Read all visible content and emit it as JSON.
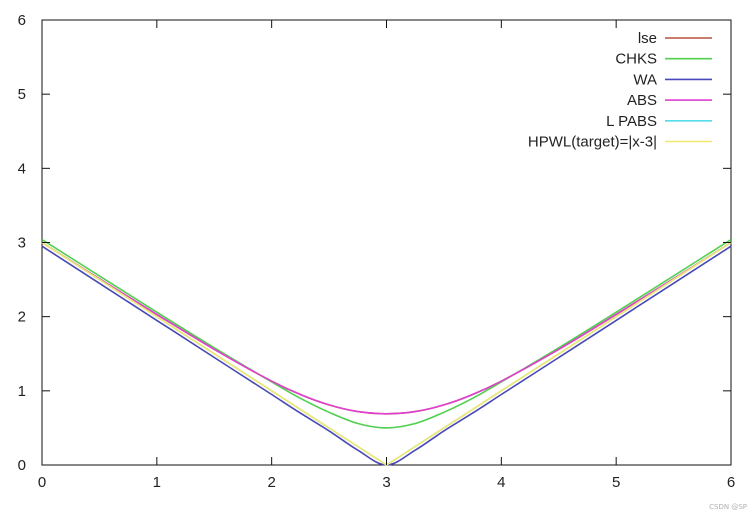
{
  "chart_data": {
    "type": "line",
    "title": "",
    "xlabel": "",
    "ylabel": "",
    "xlim": [
      0,
      6
    ],
    "ylim": [
      0,
      6
    ],
    "x_ticks": [
      "0",
      "1",
      "2",
      "3",
      "4",
      "5",
      "6"
    ],
    "y_ticks": [
      "0",
      "1",
      "2",
      "3",
      "4",
      "5",
      "6"
    ],
    "grid": false,
    "legend_position": "top-right",
    "x": [
      0,
      0.5,
      1,
      1.5,
      2,
      2.25,
      2.5,
      2.75,
      3,
      3.25,
      3.5,
      3.75,
      4,
      4.5,
      5,
      5.5,
      6
    ],
    "series": [
      {
        "name": "lse",
        "color": "#b5503e",
        "values": [
          3.0,
          2.51,
          2.03,
          1.56,
          1.13,
          0.95,
          0.81,
          0.72,
          0.69,
          0.72,
          0.81,
          0.95,
          1.13,
          1.56,
          2.03,
          2.51,
          3.0
        ]
      },
      {
        "name": "CHKS",
        "color": "#4fd04f",
        "values": [
          3.04,
          2.55,
          2.06,
          1.58,
          1.12,
          0.9,
          0.71,
          0.56,
          0.5,
          0.56,
          0.71,
          0.9,
          1.12,
          1.58,
          2.06,
          2.55,
          3.04
        ]
      },
      {
        "name": "WA",
        "color": "#4848b8",
        "values": [
          2.95,
          2.45,
          1.95,
          1.45,
          0.95,
          0.7,
          0.46,
          0.2,
          0.0,
          0.2,
          0.46,
          0.7,
          0.95,
          1.45,
          1.95,
          2.45,
          2.95
        ]
      },
      {
        "name": "ABS",
        "color": "#e040d0",
        "values": [
          3.0,
          2.51,
          2.03,
          1.56,
          1.13,
          0.95,
          0.81,
          0.72,
          0.69,
          0.72,
          0.81,
          0.95,
          1.13,
          1.56,
          2.03,
          2.51,
          3.0
        ]
      },
      {
        "name": "L PABS",
        "color": "#55dde8",
        "values": [
          3.0,
          2.5,
          2.0,
          1.5,
          1.0,
          0.75,
          0.5,
          0.25,
          0.0,
          0.25,
          0.5,
          0.75,
          1.0,
          1.5,
          2.0,
          2.5,
          3.0
        ]
      },
      {
        "name": "HPWL(target)=|x-3|",
        "color": "#f2e66e",
        "values": [
          3.0,
          2.5,
          2.0,
          1.5,
          1.0,
          0.75,
          0.5,
          0.25,
          0.0,
          0.25,
          0.5,
          0.75,
          1.0,
          1.5,
          2.0,
          2.5,
          3.0
        ]
      }
    ]
  },
  "watermark": "CSDN @SP"
}
